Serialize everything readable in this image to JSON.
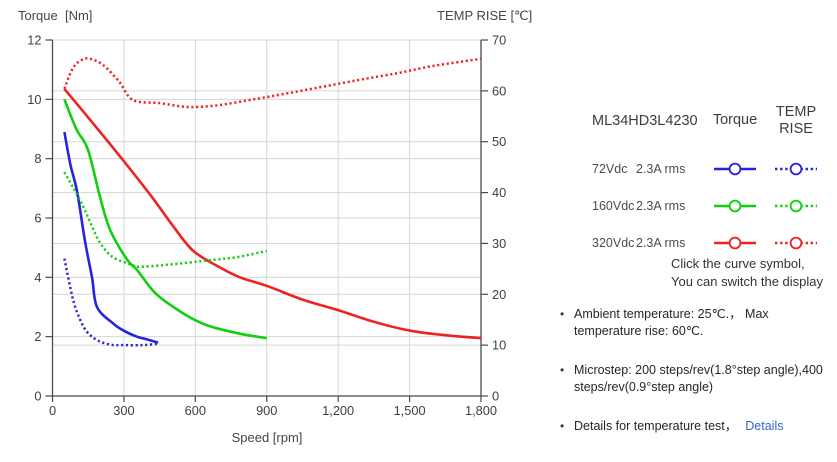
{
  "chart": {
    "title_left": "Torque  [Nm]",
    "title_right": "TEMP RISE [℃]",
    "xlabel": "Speed [rpm]"
  },
  "chart_data": {
    "type": "line",
    "title": "ML34HD3L4230 torque and temperature rise vs speed",
    "x_axis": {
      "label": "Speed [rpm]",
      "min": 0,
      "max": 1800,
      "ticks": [
        0,
        300,
        600,
        900,
        1200,
        1500,
        1800
      ],
      "tick_labels": [
        "0",
        "300",
        "600",
        "900",
        "1,200",
        "1,500",
        "1,800"
      ]
    },
    "y_left": {
      "label": "Torque [Nm]",
      "min": 0,
      "max": 12,
      "ticks": [
        0,
        2,
        4,
        6,
        8,
        10,
        12
      ]
    },
    "y_right": {
      "label": "TEMP RISE [℃]",
      "min": 0,
      "max": 70,
      "ticks": [
        0,
        10,
        20,
        30,
        40,
        50,
        60,
        70
      ]
    },
    "grid": true,
    "legend_position": "right",
    "series": [
      {
        "name": "72Vdc Torque",
        "axis": "left",
        "line": "solid",
        "color": "#2424dd",
        "points": [
          [
            50,
            8.9
          ],
          [
            75,
            7.8
          ],
          [
            103,
            6.9
          ],
          [
            137,
            5.2
          ],
          [
            166,
            4.0
          ],
          [
            187,
            3.0
          ],
          [
            254,
            2.45
          ],
          [
            300,
            2.2
          ],
          [
            355,
            2.0
          ],
          [
            400,
            1.9
          ],
          [
            443,
            1.8
          ]
        ]
      },
      {
        "name": "160Vdc Torque",
        "axis": "left",
        "line": "solid",
        "color": "#0fcf0f",
        "points": [
          [
            50,
            10.0
          ],
          [
            100,
            9.0
          ],
          [
            149,
            8.3
          ],
          [
            200,
            6.7
          ],
          [
            242,
            5.6
          ],
          [
            313,
            4.6
          ],
          [
            355,
            4.25
          ],
          [
            422,
            3.55
          ],
          [
            481,
            3.15
          ],
          [
            577,
            2.65
          ],
          [
            661,
            2.35
          ],
          [
            787,
            2.1
          ],
          [
            900,
            1.95
          ]
        ]
      },
      {
        "name": "320Vdc Torque",
        "axis": "left",
        "line": "solid",
        "color": "#ee2222",
        "points": [
          [
            50,
            10.35
          ],
          [
            128,
            9.6
          ],
          [
            271,
            8.2
          ],
          [
            409,
            6.8
          ],
          [
            500,
            5.8
          ],
          [
            590,
            4.9
          ],
          [
            700,
            4.35
          ],
          [
            787,
            4.0
          ],
          [
            904,
            3.7
          ],
          [
            1050,
            3.25
          ],
          [
            1198,
            2.9
          ],
          [
            1350,
            2.5
          ],
          [
            1504,
            2.2
          ],
          [
            1650,
            2.05
          ],
          [
            1800,
            1.95
          ]
        ]
      },
      {
        "name": "72Vdc Temp Rise",
        "axis": "right",
        "line": "dotted",
        "color": "#2424dd",
        "points": [
          [
            50,
            27
          ],
          [
            86,
            19
          ],
          [
            116,
            15
          ],
          [
            145,
            12.6
          ],
          [
            187,
            11
          ],
          [
            242,
            10.1
          ],
          [
            300,
            10
          ],
          [
            380,
            10
          ],
          [
            450,
            10.3
          ]
        ]
      },
      {
        "name": "160Vdc Temp Rise",
        "axis": "right",
        "line": "dotted",
        "color": "#0fcf0f",
        "points": [
          [
            50,
            44
          ],
          [
            116,
            38.5
          ],
          [
            158,
            34.2
          ],
          [
            200,
            30.1
          ],
          [
            254,
            27.3
          ],
          [
            334,
            25.8
          ],
          [
            360,
            25.4
          ],
          [
            481,
            25.8
          ],
          [
            661,
            26.7
          ],
          [
            774,
            27.3
          ],
          [
            900,
            28.5
          ]
        ]
      },
      {
        "name": "320Vdc Temp Rise",
        "axis": "right",
        "line": "dotted",
        "color": "#ee2222",
        "points": [
          [
            50,
            60.4
          ],
          [
            86,
            64.5
          ],
          [
            124,
            66.1
          ],
          [
            158,
            66.3
          ],
          [
            212,
            65.1
          ],
          [
            280,
            61.8
          ],
          [
            338,
            58.2
          ],
          [
            451,
            57.6
          ],
          [
            530,
            57.0
          ],
          [
            590,
            56.8
          ],
          [
            700,
            57.2
          ],
          [
            829,
            58.2
          ],
          [
            950,
            59.2
          ],
          [
            1100,
            60.5
          ],
          [
            1282,
            62.1
          ],
          [
            1450,
            63.5
          ],
          [
            1600,
            64.9
          ],
          [
            1800,
            66.3
          ]
        ]
      }
    ]
  },
  "legend": {
    "model": "ML34HD3L4230",
    "col_torque": "Torque",
    "col_temp": "TEMP RISE",
    "note_line1": "Click the curve symbol,",
    "note_line2": "You can switch the display",
    "rows": [
      {
        "voltage": "72Vdc",
        "current": "2.3A rms",
        "color": "#2424dd"
      },
      {
        "voltage": "160Vdc",
        "current": "2.3A rms",
        "color": "#0fcf0f"
      },
      {
        "voltage": "320Vdc",
        "current": "2.3A rms",
        "color": "#ee2222"
      }
    ]
  },
  "notes": {
    "ambient": "Ambient temperature: 25℃.， Max\ntemperature rise: 60℃.",
    "microstep": "Microstep: 200 steps/rev(1.8°step angle),400\nsteps/rev(0.9°step angle)",
    "details_text": "Details for temperature test，",
    "details_link": "Details",
    "bullet": "•"
  },
  "colors": {
    "blue": "#2424dd",
    "green": "#0fcf0f",
    "red": "#ee2222",
    "grid": "#d6d6d6",
    "axis": "#4a4a4a",
    "link": "#2e68c8"
  }
}
